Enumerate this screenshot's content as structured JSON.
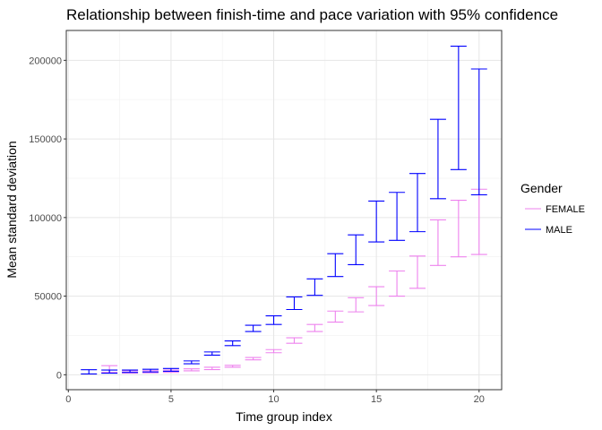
{
  "chart_data": {
    "type": "errorbar",
    "title": "Relationship between finish-time and pace variation with 95% confidence",
    "xlabel": "Time group index",
    "ylabel": "Mean standard deviation",
    "xlim": [
      -0.1,
      21.1
    ],
    "ylim": [
      -9500,
      219000
    ],
    "x_ticks": [
      0,
      5,
      10,
      15,
      20
    ],
    "x_tick_labels": [
      "0",
      "5",
      "10",
      "15",
      "20"
    ],
    "y_ticks": [
      0,
      50000,
      100000,
      150000,
      200000
    ],
    "y_tick_labels": [
      "0",
      "50000",
      "100000",
      "150000",
      "200000"
    ],
    "grid": true,
    "legend": {
      "title": "Gender",
      "position": "right"
    },
    "series": [
      {
        "name": "FEMALE",
        "color": "#ee82ee",
        "x": [
          2,
          3,
          4,
          5,
          6,
          7,
          8,
          9,
          10,
          11,
          12,
          13,
          14,
          15,
          16,
          17,
          18,
          19,
          20
        ],
        "lower": [
          1500,
          1000,
          1200,
          1500,
          2500,
          3300,
          4800,
          9500,
          14000,
          20000,
          27500,
          33500,
          40000,
          44000,
          50000,
          55000,
          69500,
          75000,
          76500
        ],
        "upper": [
          5800,
          2500,
          2600,
          3000,
          3800,
          4800,
          6000,
          11000,
          16000,
          23500,
          32000,
          40500,
          49000,
          56000,
          66000,
          75500,
          98500,
          111000,
          118000
        ]
      },
      {
        "name": "MALE",
        "color": "#0000ff",
        "x": [
          1,
          2,
          3,
          4,
          5,
          6,
          7,
          8,
          9,
          10,
          11,
          12,
          13,
          14,
          15,
          16,
          17,
          18,
          19,
          20
        ],
        "lower": [
          500,
          1000,
          1500,
          1800,
          2200,
          7000,
          12500,
          18500,
          27500,
          32000,
          41500,
          50500,
          62500,
          70000,
          84500,
          85500,
          91000,
          112000,
          130500,
          114500
        ],
        "upper": [
          3200,
          3000,
          3000,
          3500,
          4000,
          8800,
          14500,
          21500,
          31500,
          37500,
          49500,
          61000,
          77000,
          89000,
          110500,
          116000,
          128000,
          162500,
          209000,
          194500
        ]
      }
    ]
  }
}
